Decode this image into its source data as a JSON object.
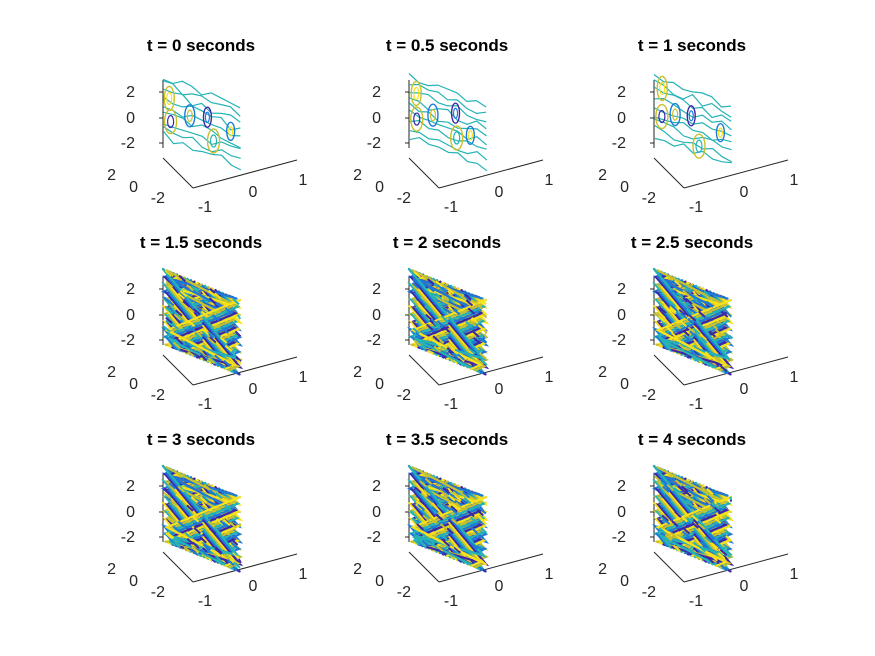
{
  "chart_data": [
    {
      "type": "contour3d",
      "title": "t = 0 seconds",
      "pattern": "smooth",
      "z_ticks": [
        "2",
        "0",
        "-2"
      ],
      "y_ticks": [
        "2",
        "0",
        "-2"
      ],
      "x_ticks": [
        "-1",
        "0",
        "1"
      ],
      "ylim": [
        -3,
        3
      ],
      "zlim": [
        -3,
        3
      ],
      "xlim": [
        -1,
        1
      ]
    },
    {
      "type": "contour3d",
      "title": "t = 0.5 seconds",
      "pattern": "smooth",
      "z_ticks": [
        "2",
        "0",
        "-2"
      ],
      "y_ticks": [
        "2",
        "0",
        "-2"
      ],
      "x_ticks": [
        "-1",
        "0",
        "1"
      ],
      "ylim": [
        -3,
        3
      ],
      "zlim": [
        -3,
        3
      ],
      "xlim": [
        -1,
        1
      ]
    },
    {
      "type": "contour3d",
      "title": "t = 1 seconds",
      "pattern": "smooth",
      "z_ticks": [
        "2",
        "0",
        "-2"
      ],
      "y_ticks": [
        "2",
        "0",
        "-2"
      ],
      "x_ticks": [
        "-1",
        "0",
        "1"
      ],
      "ylim": [
        -3,
        3
      ],
      "zlim": [
        -3,
        3
      ],
      "xlim": [
        -1,
        1
      ]
    },
    {
      "type": "contour3d",
      "title": "t = 1.5 seconds",
      "pattern": "dense",
      "z_ticks": [
        "2",
        "0",
        "-2"
      ],
      "y_ticks": [
        "2",
        "0",
        "-2"
      ],
      "x_ticks": [
        "-1",
        "0",
        "1"
      ],
      "ylim": [
        -3,
        3
      ],
      "zlim": [
        -3,
        3
      ],
      "xlim": [
        -1,
        1
      ]
    },
    {
      "type": "contour3d",
      "title": "t = 2 seconds",
      "pattern": "dense",
      "z_ticks": [
        "2",
        "0",
        "-2"
      ],
      "y_ticks": [
        "2",
        "0",
        "-2"
      ],
      "x_ticks": [
        "-1",
        "0",
        "1"
      ],
      "ylim": [
        -3,
        3
      ],
      "zlim": [
        -3,
        3
      ],
      "xlim": [
        -1,
        1
      ]
    },
    {
      "type": "contour3d",
      "title": "t = 2.5 seconds",
      "pattern": "dense",
      "z_ticks": [
        "2",
        "0",
        "-2"
      ],
      "y_ticks": [
        "2",
        "0",
        "-2"
      ],
      "x_ticks": [
        "-1",
        "0",
        "1"
      ],
      "ylim": [
        -3,
        3
      ],
      "zlim": [
        -3,
        3
      ],
      "xlim": [
        -1,
        1
      ]
    },
    {
      "type": "contour3d",
      "title": "t = 3 seconds",
      "pattern": "dense",
      "z_ticks": [
        "2",
        "0",
        "-2"
      ],
      "y_ticks": [
        "2",
        "0",
        "-2"
      ],
      "x_ticks": [
        "-1",
        "0",
        "1"
      ],
      "ylim": [
        -3,
        3
      ],
      "zlim": [
        -3,
        3
      ],
      "xlim": [
        -1,
        1
      ]
    },
    {
      "type": "contour3d",
      "title": "t = 3.5 seconds",
      "pattern": "dense",
      "z_ticks": [
        "2",
        "0",
        "-2"
      ],
      "y_ticks": [
        "2",
        "0",
        "-2"
      ],
      "x_ticks": [
        "-1",
        "0",
        "1"
      ],
      "ylim": [
        -3,
        3
      ],
      "zlim": [
        -3,
        3
      ],
      "xlim": [
        -1,
        1
      ]
    },
    {
      "type": "contour3d",
      "title": "t = 4 seconds",
      "pattern": "dense",
      "z_ticks": [
        "2",
        "0",
        "-2"
      ],
      "y_ticks": [
        "2",
        "0",
        "-2"
      ],
      "x_ticks": [
        "-1",
        "0",
        "1"
      ],
      "ylim": [
        -3,
        3
      ],
      "zlim": [
        -3,
        3
      ],
      "xlim": [
        -1,
        1
      ]
    }
  ],
  "colors": {
    "contour_levels": [
      "#3e26a8",
      "#1d7bd8",
      "#25b3b6",
      "#c9c02d",
      "#f9e21a"
    ],
    "axis": "#262626",
    "background": "#ffffff"
  }
}
